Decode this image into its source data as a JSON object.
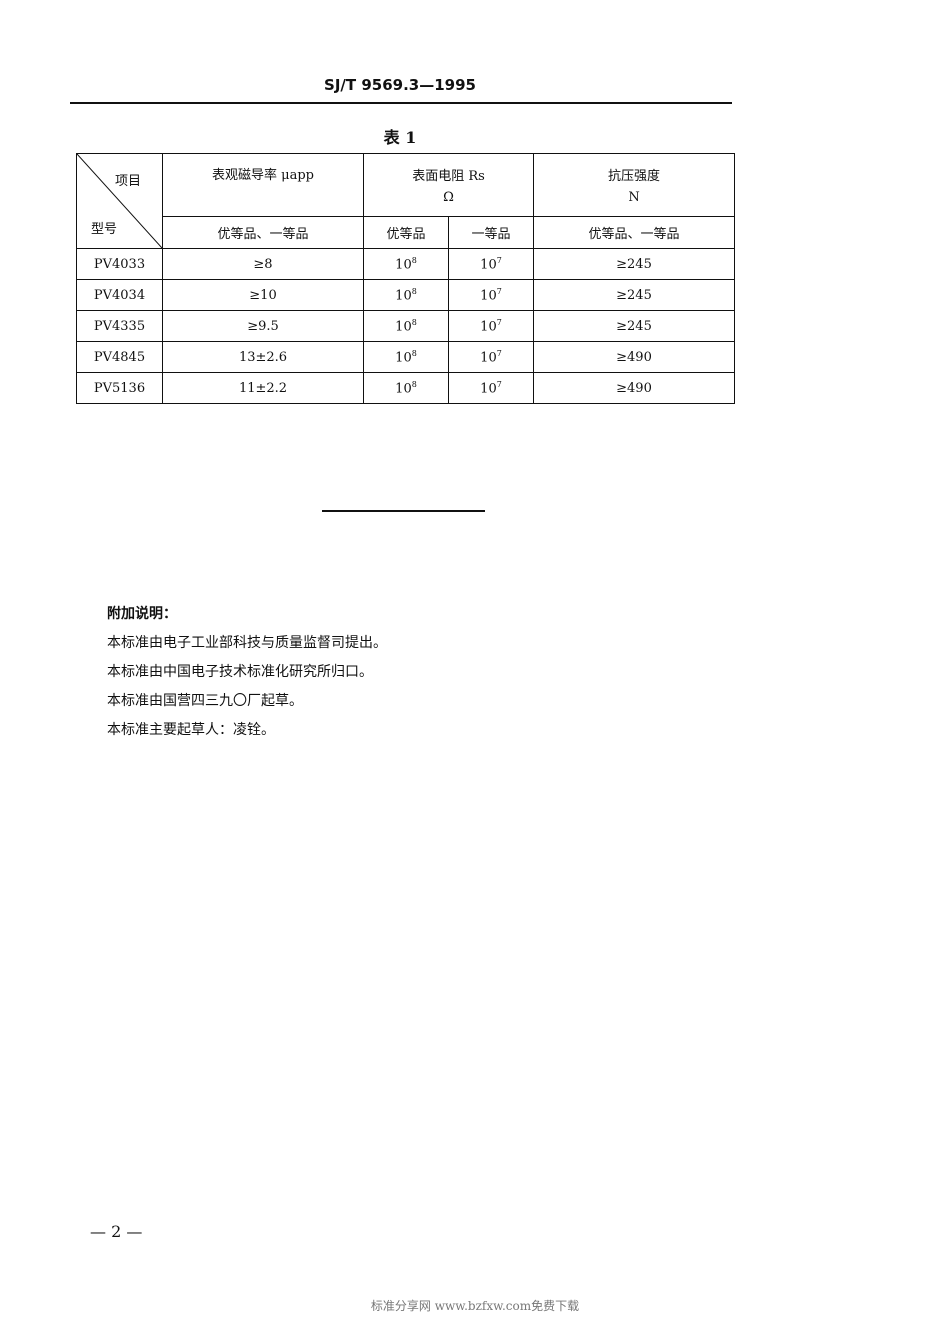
{
  "header": {
    "doc_code": "SJ/T 9569.3—1995"
  },
  "table": {
    "title": "表 1",
    "corner_top": "项目",
    "corner_bottom": "型号",
    "col_permeability": "表观磁导率 μapp",
    "col_resistance": "表面电阻 Rs",
    "col_resistance_unit": "Ω",
    "col_strength": "抗压强度",
    "col_strength_unit": "N",
    "sub_perm": "优等品、一等品",
    "sub_res_premium": "优等品",
    "sub_res_first": "一等品",
    "sub_strength": "优等品、一等品",
    "rows": [
      {
        "model": "PV4033",
        "perm": "≥8",
        "res_premium": "10",
        "res_premium_exp": "8",
        "res_first": "10",
        "res_first_exp": "7",
        "strength": "≥245"
      },
      {
        "model": "PV4034",
        "perm": "≥10",
        "res_premium": "10",
        "res_premium_exp": "8",
        "res_first": "10",
        "res_first_exp": "7",
        "strength": "≥245"
      },
      {
        "model": "PV4335",
        "perm": "≥9.5",
        "res_premium": "10",
        "res_premium_exp": "8",
        "res_first": "10",
        "res_first_exp": "7",
        "strength": "≥245"
      },
      {
        "model": "PV4845",
        "perm": "13±2.6",
        "res_premium": "10",
        "res_premium_exp": "8",
        "res_first": "10",
        "res_first_exp": "7",
        "strength": "≥490"
      },
      {
        "model": "PV5136",
        "perm": "11±2.2",
        "res_premium": "10",
        "res_premium_exp": "8",
        "res_first": "10",
        "res_first_exp": "7",
        "strength": "≥490"
      }
    ]
  },
  "notes": {
    "heading": "附加说明：",
    "lines": [
      "本标准由电子工业部科技与质量监督司提出。",
      "本标准由中国电子技术标准化研究所归口。",
      "本标准由国营四三九〇厂起草。",
      "本标准主要起草人：凌铨。"
    ]
  },
  "footer": {
    "page_number": "— 2 —",
    "watermark": "标准分享网 www.bzfxw.com免费下载"
  }
}
